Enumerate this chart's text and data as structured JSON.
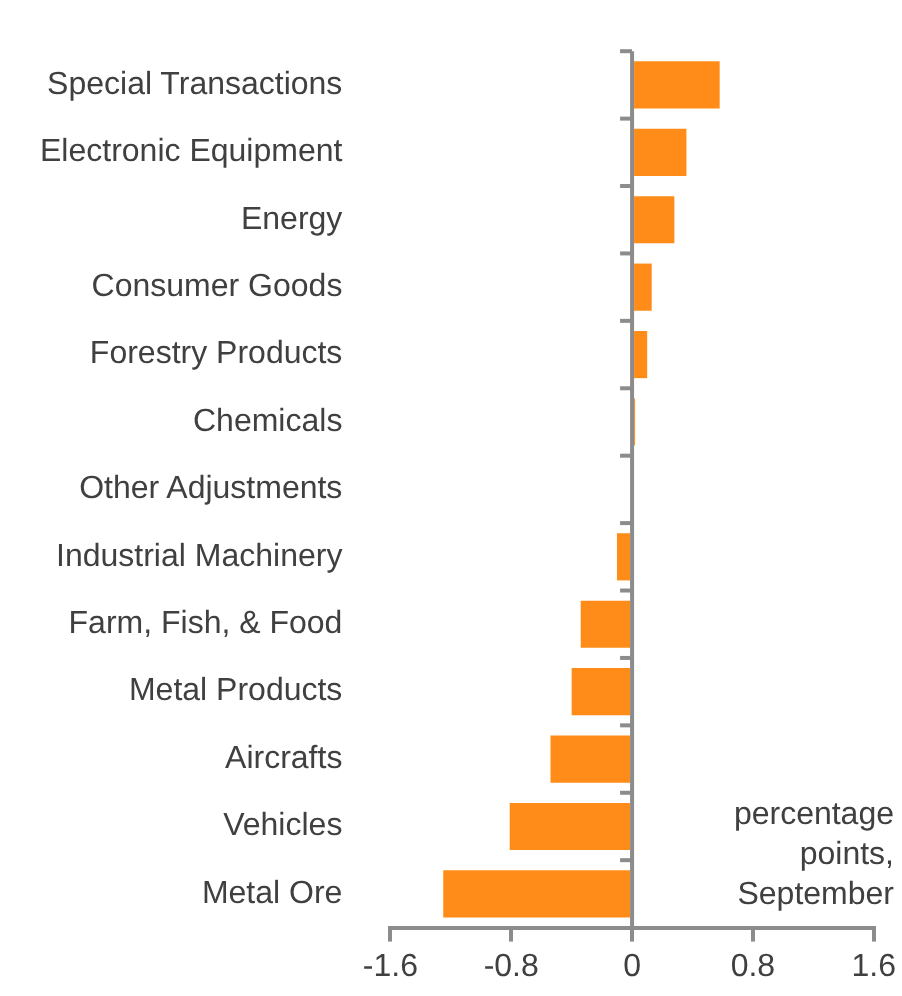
{
  "chart_data": {
    "type": "bar",
    "orientation": "horizontal",
    "categories": [
      "Special Transactions",
      "Electronic Equipment",
      "Energy",
      "Consumer Goods",
      "Forestry Products",
      "Chemicals",
      "Other Adjustments",
      "Industrial Machinery",
      "Farm, Fish, & Food",
      "Metal Products",
      "Aircrafts",
      "Vehicles",
      "Metal Ore"
    ],
    "values": [
      0.58,
      0.36,
      0.28,
      0.13,
      0.1,
      0.02,
      0,
      -0.1,
      -0.34,
      -0.4,
      -0.54,
      -0.81,
      -1.25
    ],
    "color": "#ff8c19",
    "xlim": [
      -1.6,
      1.6
    ],
    "xticks": [
      -1.6,
      -0.8,
      0,
      0.8,
      1.6
    ],
    "legend": false,
    "annotations": [
      "percentage points, September"
    ]
  }
}
